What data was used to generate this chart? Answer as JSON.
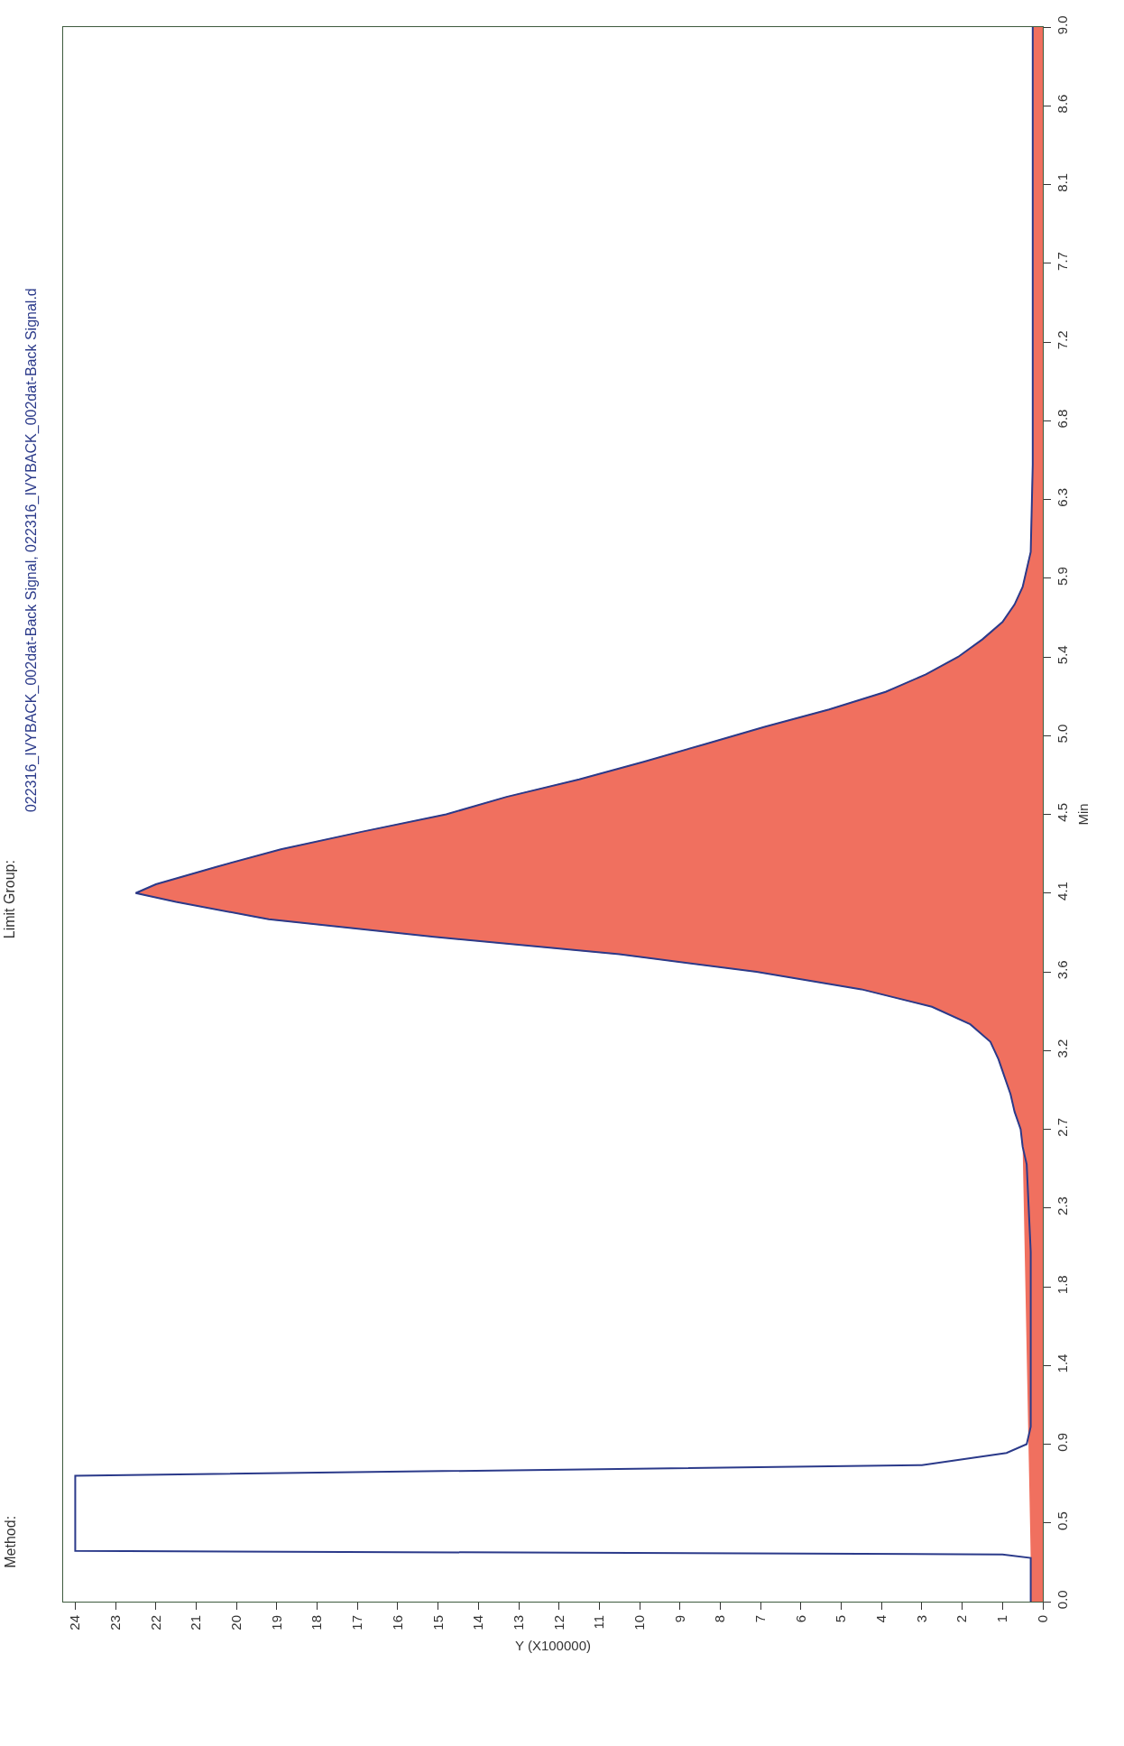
{
  "chart_data": {
    "type": "line",
    "orientation": "horizontal",
    "title": "022316_IVYBACK_002dat-Back Signal, 022316_IVYBACK_002dat-Back Signal.d",
    "annotations": [
      "Method:",
      "Limit Group:"
    ],
    "xlabel": "Y (X100000)",
    "ylabel": "Min",
    "x": [
      0,
      0.25,
      0.27,
      0.29,
      0.72,
      0.78,
      0.85,
      0.9,
      1.0,
      1.5,
      2.0,
      2.5,
      2.6,
      2.7,
      2.8,
      2.9,
      3.0,
      3.1,
      3.2,
      3.3,
      3.4,
      3.5,
      3.6,
      3.7,
      3.8,
      3.9,
      4.0,
      4.05,
      4.1,
      4.2,
      4.3,
      4.4,
      4.5,
      4.6,
      4.7,
      4.8,
      4.9,
      5.0,
      5.1,
      5.2,
      5.3,
      5.4,
      5.5,
      5.6,
      5.7,
      5.8,
      6.0,
      6.5,
      7.0,
      8.0,
      9.0
    ],
    "series": [
      {
        "color": "#2b3a8a",
        "values": [
          0.3,
          0.3,
          1.0,
          24,
          24,
          3.0,
          0.9,
          0.4,
          0.3,
          0.3,
          0.3,
          0.4,
          0.5,
          0.55,
          0.7,
          0.8,
          0.95,
          1.1,
          1.3,
          1.8,
          2.75,
          4.5,
          7.1,
          10.5,
          15.1,
          19.2,
          21.5,
          22.5,
          22,
          20.5,
          18.9,
          16.9,
          14.8,
          13.3,
          11.5,
          9.9,
          8.4,
          6.9,
          5.3,
          3.9,
          2.9,
          2.1,
          1.5,
          1.0,
          0.7,
          0.5,
          0.3,
          0.25,
          0.25,
          0.25,
          0.25
        ]
      },
      {
        "type": "area",
        "color": "#f0705f",
        "values": [
          0.3,
          0.3,
          null,
          null,
          null,
          null,
          null,
          null,
          null,
          null,
          null,
          null,
          0.5,
          0.55,
          0.7,
          0.8,
          0.95,
          1.1,
          1.3,
          1.8,
          2.75,
          4.5,
          7.1,
          10.5,
          15.1,
          19.2,
          21.5,
          22.5,
          22,
          20.5,
          18.9,
          16.9,
          14.8,
          13.3,
          11.5,
          9.9,
          8.4,
          6.9,
          5.3,
          3.9,
          2.9,
          2.1,
          1.5,
          1.0,
          0.7,
          0.5,
          0.3,
          0.25,
          0.25,
          0.25,
          0.25
        ]
      }
    ],
    "xlim": [
      24.3,
      0
    ],
    "xticks": [
      0,
      1,
      2,
      3,
      4,
      5,
      6,
      7,
      8,
      9,
      10,
      11,
      12,
      13,
      14,
      15,
      16,
      17,
      18,
      19,
      20,
      21,
      22,
      23,
      24
    ],
    "ylim": [
      0,
      9.0
    ],
    "yticks": [
      {
        "value": 0,
        "label": "0.0"
      },
      {
        "value": 0.45,
        "label": "0.5"
      },
      {
        "value": 0.9,
        "label": "0.9"
      },
      {
        "value": 1.35,
        "label": "1.4"
      },
      {
        "value": 1.8,
        "label": "1.8"
      },
      {
        "value": 2.25,
        "label": "2.3"
      },
      {
        "value": 2.7,
        "label": "2.7"
      },
      {
        "value": 3.15,
        "label": "3.2"
      },
      {
        "value": 3.6,
        "label": "3.6"
      },
      {
        "value": 4.05,
        "label": "4.1"
      },
      {
        "value": 4.5,
        "label": "4.5"
      },
      {
        "value": 4.95,
        "label": "5.0"
      },
      {
        "value": 5.4,
        "label": "5.4"
      },
      {
        "value": 5.85,
        "label": "5.9"
      },
      {
        "value": 6.3,
        "label": "6.3"
      },
      {
        "value": 6.75,
        "label": "6.8"
      },
      {
        "value": 7.2,
        "label": "7.2"
      },
      {
        "value": 7.65,
        "label": "7.7"
      },
      {
        "value": 8.1,
        "label": "8.1"
      },
      {
        "value": 8.55,
        "label": "8.6"
      },
      {
        "value": 9.0,
        "label": "9.0"
      }
    ],
    "marker": "none",
    "line_style": "solid"
  }
}
